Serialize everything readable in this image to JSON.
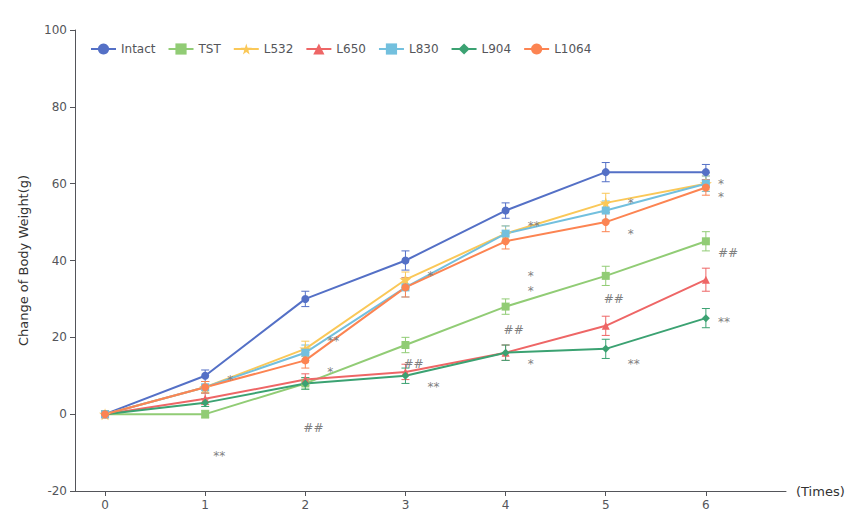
{
  "chart_data": {
    "type": "line",
    "xlabel": "(Times)",
    "ylabel": "Change of Body Weight(g)",
    "x": [
      0,
      1,
      2,
      3,
      4,
      5,
      6
    ],
    "series": [
      {
        "name": "Intact",
        "marker": "circle",
        "values": [
          0,
          10,
          30,
          40,
          53,
          63,
          63
        ],
        "errors": [
          0,
          1.5,
          2.0,
          2.5,
          2.0,
          2.5,
          2.0
        ]
      },
      {
        "name": "TST",
        "marker": "square",
        "values": [
          0,
          0,
          8,
          18,
          28,
          36,
          45
        ],
        "errors": [
          0,
          1.0,
          1.5,
          2.0,
          2.0,
          2.5,
          2.5
        ]
      },
      {
        "name": "L532",
        "marker": "star",
        "values": [
          0,
          7,
          17,
          35,
          47,
          55,
          60
        ],
        "errors": [
          0,
          1.5,
          2.0,
          2.0,
          2.0,
          2.5,
          2.0
        ]
      },
      {
        "name": "L650",
        "marker": "triangle",
        "values": [
          0,
          4,
          9,
          11,
          16,
          23,
          35
        ],
        "errors": [
          0,
          1.5,
          1.5,
          2.0,
          2.0,
          2.5,
          3.0
        ]
      },
      {
        "name": "L830",
        "marker": "square",
        "values": [
          0,
          7,
          16,
          33,
          47,
          53,
          60
        ],
        "errors": [
          0,
          1.5,
          2.0,
          2.5,
          2.0,
          2.5,
          2.0
        ]
      },
      {
        "name": "L904",
        "marker": "diamond",
        "values": [
          0,
          3,
          8,
          10,
          16,
          17,
          25
        ],
        "errors": [
          0,
          1.0,
          1.5,
          2.0,
          2.0,
          2.5,
          2.5
        ]
      },
      {
        "name": "L1064",
        "marker": "circle",
        "values": [
          0,
          7,
          14,
          33,
          45,
          50,
          59
        ],
        "errors": [
          0,
          1.5,
          2.0,
          2.5,
          2.0,
          2.5,
          2.0
        ]
      }
    ],
    "xlim": [
      -0.3,
      6.8
    ],
    "xticks": [
      0,
      1,
      2,
      3,
      4,
      5,
      6
    ],
    "ylim": [
      -20,
      100
    ],
    "yticks": [
      -20,
      0,
      20,
      40,
      60,
      80,
      100
    ],
    "grid": false,
    "legend": "upper left",
    "annotations": [
      {
        "text": "**",
        "x": 1.08,
        "y": -11
      },
      {
        "text": "*",
        "x": 1.22,
        "y": 9
      },
      {
        "text": "##",
        "x": 1.98,
        "y": -3.5
      },
      {
        "text": "**",
        "x": 2.22,
        "y": 19
      },
      {
        "text": "*",
        "x": 2.22,
        "y": 11
      },
      {
        "text": "##",
        "x": 2.98,
        "y": 13
      },
      {
        "text": "*",
        "x": 3.22,
        "y": 36
      },
      {
        "text": "**",
        "x": 3.22,
        "y": 7
      },
      {
        "text": "##",
        "x": 3.98,
        "y": 22
      },
      {
        "text": "**",
        "x": 4.22,
        "y": 49
      },
      {
        "text": "*",
        "x": 4.22,
        "y": 36
      },
      {
        "text": "*",
        "x": 4.22,
        "y": 32
      },
      {
        "text": "*",
        "x": 4.22,
        "y": 13
      },
      {
        "text": "##",
        "x": 4.98,
        "y": 30
      },
      {
        "text": "*",
        "x": 5.22,
        "y": 55
      },
      {
        "text": "*",
        "x": 5.22,
        "y": 47
      },
      {
        "text": "**",
        "x": 5.22,
        "y": 13
      },
      {
        "text": "##",
        "x": 6.12,
        "y": 42
      },
      {
        "text": "*",
        "x": 6.12,
        "y": 60
      },
      {
        "text": "*",
        "x": 6.12,
        "y": 56.5
      },
      {
        "text": "**",
        "x": 6.12,
        "y": 24
      }
    ]
  }
}
